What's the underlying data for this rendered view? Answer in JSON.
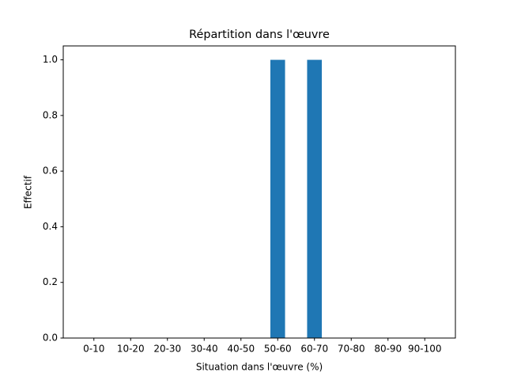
{
  "chart_data": {
    "type": "bar",
    "title": "Répartition dans l'œuvre",
    "x_label": "Situation dans l'œuvre (%)",
    "y_label": "Effectif",
    "categories": [
      "0-10",
      "10-20",
      "20-30",
      "30-40",
      "40-50",
      "50-60",
      "60-70",
      "70-80",
      "80-90",
      "90-100"
    ],
    "values": [
      0,
      0,
      0,
      0,
      0,
      1,
      1,
      0,
      0,
      0
    ],
    "color": "#1f77b4",
    "ylim": [
      0,
      1.05
    ],
    "yticks": [
      {
        "value": 0,
        "label": "0.0"
      },
      {
        "value": 0.2,
        "label": "0.2"
      },
      {
        "value": 0.4,
        "label": "0.4"
      },
      {
        "value": 0.6,
        "label": "0.6"
      },
      {
        "value": 0.8,
        "label": "0.8"
      },
      {
        "value": 1,
        "label": "1.0"
      }
    ],
    "grid": false
  }
}
